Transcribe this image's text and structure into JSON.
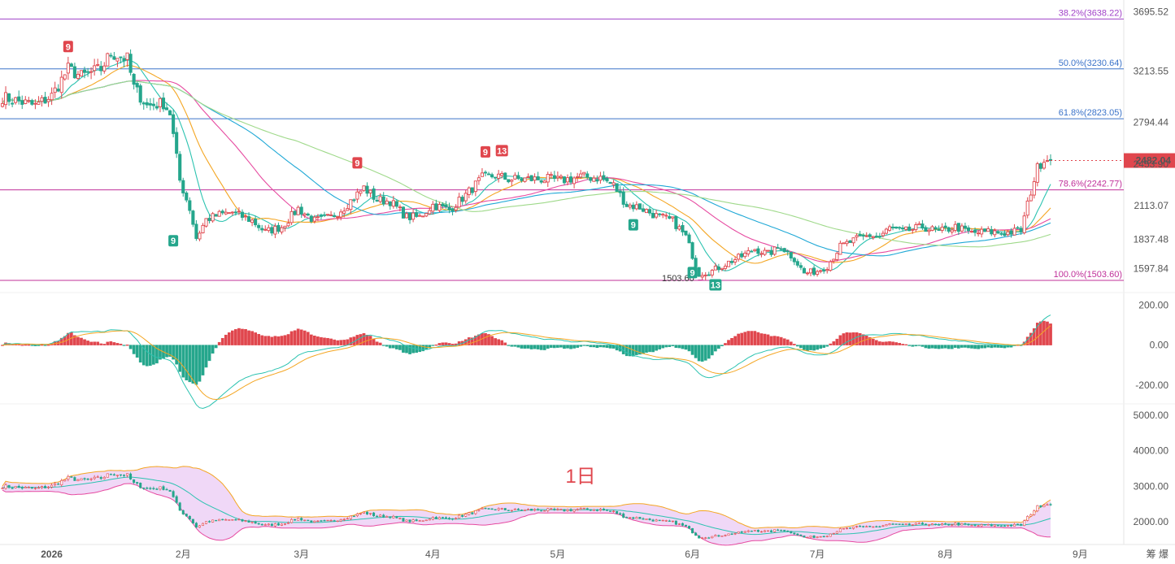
{
  "chart_data": {
    "type": "candlestick",
    "timeframe_label": "1日",
    "colors": {
      "up": "#e0464d",
      "down": "#25a68c"
    },
    "price_panel": {
      "ylim": [
        1470,
        3760
      ],
      "y_ticks": [
        "3695.52",
        "3213.55",
        "2794.44",
        "2453.90",
        "2113.07",
        "1837.48",
        "1597.84"
      ],
      "current_price": {
        "label": "2482.04",
        "value": 2482.04,
        "color": "#e0464d"
      },
      "low_annotation": {
        "label": "1503.60",
        "value": 1503.6
      },
      "fib_levels": [
        {
          "label": "38.2%(3638.22)",
          "value": 3638.22,
          "color": "#a142c8"
        },
        {
          "label": "50.0%(3230.64)",
          "value": 3230.64,
          "color": "#3b73c9"
        },
        {
          "label": "61.8%(2823.05)",
          "value": 2823.05,
          "color": "#3b73c9"
        },
        {
          "label": "78.6%(2242.77)",
          "value": 2242.77,
          "color": "#c0309a"
        },
        {
          "label": "100.0%(1503.60)",
          "value": 1503.6,
          "color": "#c0309a"
        }
      ],
      "td_markers": [
        {
          "label": "9",
          "day": 20,
          "value": 3340,
          "color": "#e0464d",
          "pos": "above"
        },
        {
          "label": "9",
          "day": 52,
          "value": 1900,
          "color": "#25a68c",
          "pos": "below"
        },
        {
          "label": "9",
          "day": 108,
          "value": 2390,
          "color": "#e0464d",
          "pos": "above"
        },
        {
          "label": "9",
          "day": 147,
          "value": 2480,
          "color": "#e0464d",
          "pos": "above"
        },
        {
          "label": "13",
          "day": 152,
          "value": 2490,
          "color": "#e0464d",
          "pos": "above"
        },
        {
          "label": "9",
          "day": 192,
          "value": 2030,
          "color": "#25a68c",
          "pos": "below"
        },
        {
          "label": "9",
          "day": 210,
          "value": 1640,
          "color": "#25a68c",
          "pos": "below"
        },
        {
          "label": "13",
          "day": 217,
          "value": 1540,
          "color": "#25a68c",
          "pos": "below"
        }
      ],
      "anchors": [
        [
          0,
          3000
        ],
        [
          10,
          2930
        ],
        [
          15,
          3010
        ],
        [
          20,
          3230
        ],
        [
          24,
          3170
        ],
        [
          30,
          3230
        ],
        [
          33,
          3360
        ],
        [
          38,
          3310
        ],
        [
          40,
          3080
        ],
        [
          44,
          2930
        ],
        [
          49,
          2950
        ],
        [
          51,
          2870
        ],
        [
          54,
          2320
        ],
        [
          57,
          2090
        ],
        [
          59,
          1850
        ],
        [
          62,
          2000
        ],
        [
          66,
          2040
        ],
        [
          70,
          2060
        ],
        [
          76,
          1990
        ],
        [
          80,
          1900
        ],
        [
          85,
          1940
        ],
        [
          90,
          2090
        ],
        [
          95,
          1990
        ],
        [
          100,
          2020
        ],
        [
          104,
          2100
        ],
        [
          110,
          2260
        ],
        [
          114,
          2160
        ],
        [
          118,
          2150
        ],
        [
          123,
          2020
        ],
        [
          127,
          2020
        ],
        [
          131,
          2120
        ],
        [
          136,
          2080
        ],
        [
          141,
          2200
        ],
        [
          146,
          2340
        ],
        [
          150,
          2360
        ],
        [
          154,
          2330
        ],
        [
          160,
          2330
        ],
        [
          166,
          2330
        ],
        [
          170,
          2320
        ],
        [
          176,
          2350
        ],
        [
          182,
          2340
        ],
        [
          186,
          2280
        ],
        [
          190,
          2120
        ],
        [
          194,
          2100
        ],
        [
          199,
          2030
        ],
        [
          204,
          1990
        ],
        [
          208,
          1860
        ],
        [
          212,
          1560
        ],
        [
          216,
          1580
        ],
        [
          221,
          1650
        ],
        [
          225,
          1700
        ],
        [
          229,
          1760
        ],
        [
          233,
          1720
        ],
        [
          237,
          1780
        ],
        [
          241,
          1680
        ],
        [
          244,
          1560
        ],
        [
          248,
          1580
        ],
        [
          251,
          1620
        ],
        [
          255,
          1780
        ],
        [
          260,
          1840
        ],
        [
          264,
          1870
        ],
        [
          267,
          1860
        ],
        [
          270,
          1930
        ],
        [
          274,
          1900
        ],
        [
          280,
          1940
        ],
        [
          285,
          1900
        ],
        [
          290,
          1940
        ],
        [
          295,
          1890
        ],
        [
          300,
          1900
        ],
        [
          305,
          1890
        ],
        [
          310,
          1910
        ],
        [
          313,
          2230
        ],
        [
          315,
          2420
        ],
        [
          317,
          2500
        ],
        [
          319,
          2482
        ]
      ]
    },
    "macd_panel": {
      "y_ticks": [
        "200.00",
        "0.00",
        "-200.00"
      ],
      "ylim": [
        -290,
        230
      ]
    },
    "volume_panel": {
      "y_ticks": [
        "5000.00",
        "4000.00",
        "3000.00",
        "2000.00"
      ],
      "ylim": [
        1450,
        5300
      ]
    },
    "x_axis": {
      "labels": [
        {
          "text": "2026",
          "day": 15,
          "bold": true
        },
        {
          "text": "2月",
          "day": 55
        },
        {
          "text": "3月",
          "day": 91
        },
        {
          "text": "4月",
          "day": 131
        },
        {
          "text": "5月",
          "day": 169
        },
        {
          "text": "6月",
          "day": 210
        },
        {
          "text": "7月",
          "day": 248
        },
        {
          "text": "8月",
          "day": 287
        },
        {
          "text": "9月",
          "day": 328
        }
      ],
      "last_day": 319
    },
    "corner_label": "筹 爆"
  }
}
